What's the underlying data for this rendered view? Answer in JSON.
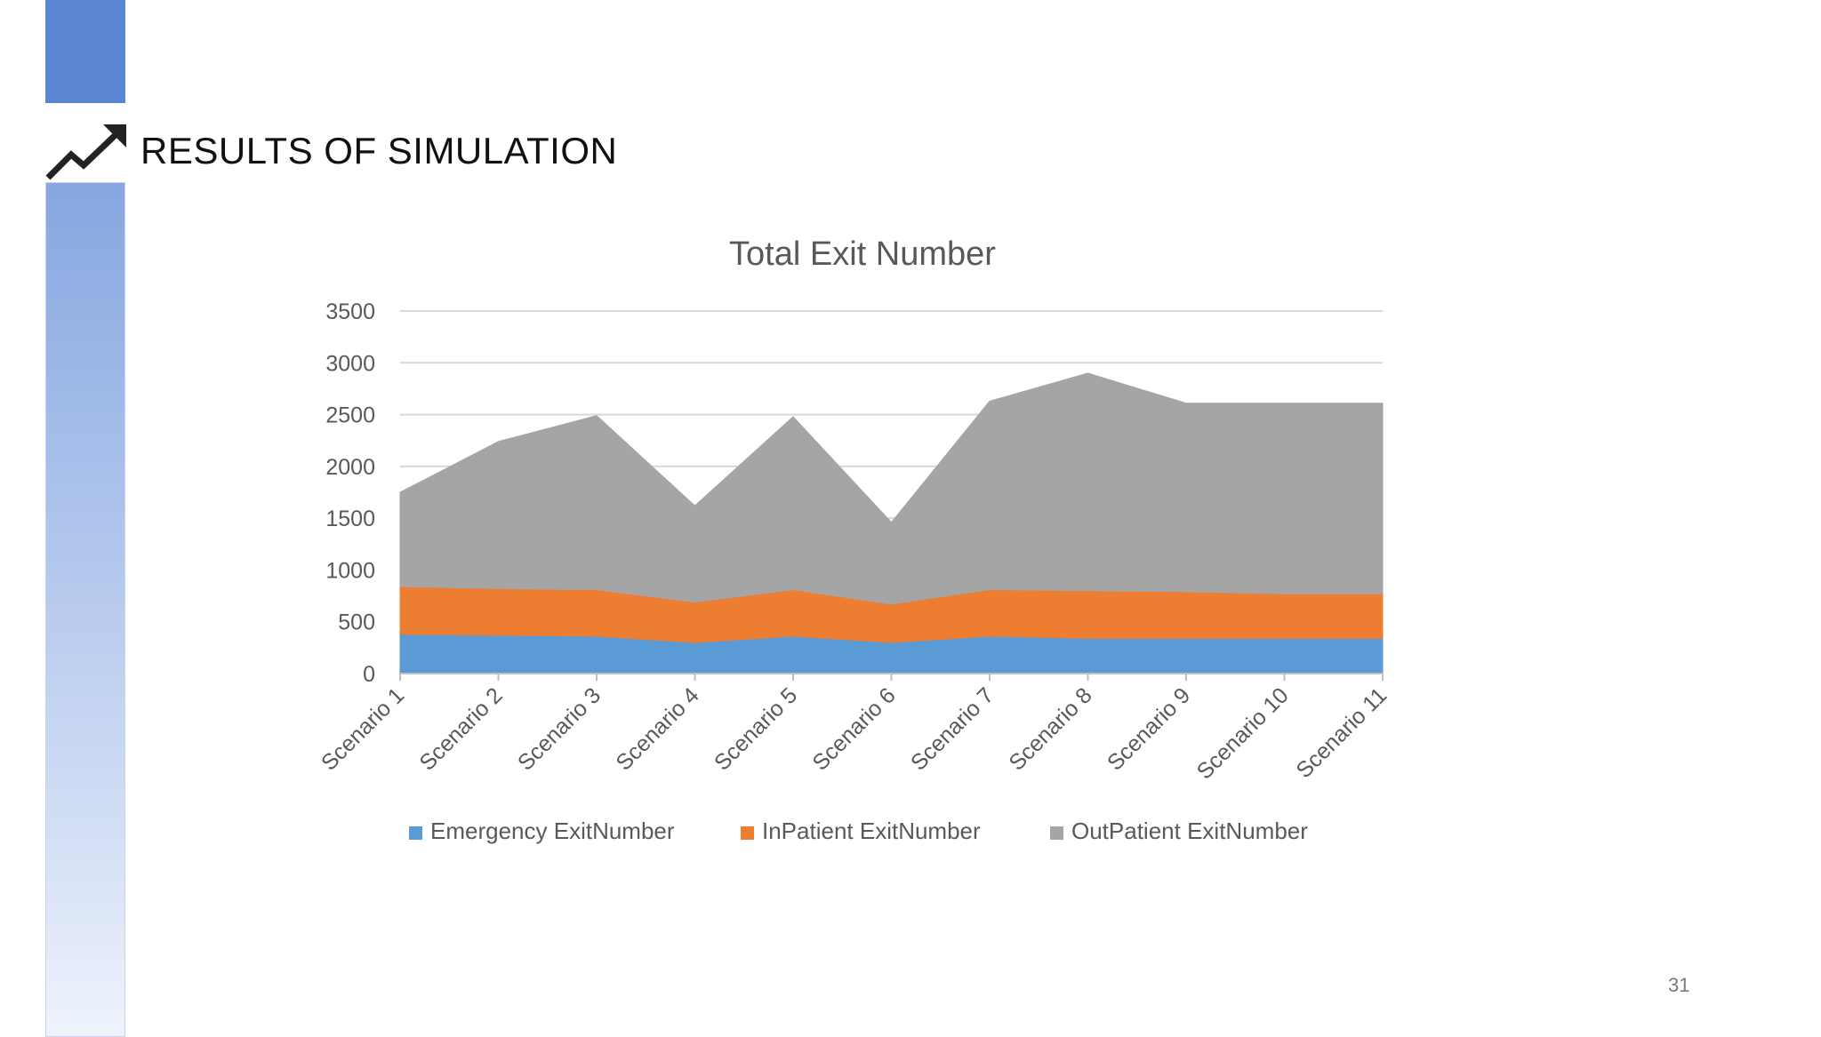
{
  "slide": {
    "title": "RESULTS OF SIMULATION",
    "page_number": "31",
    "icon": "trend-up-arrow-icon",
    "accent_color": "#5b86d3"
  },
  "chart_data": {
    "type": "area",
    "stacked": true,
    "title": "Total Exit Number",
    "xlabel": "",
    "ylabel": "",
    "ylim": [
      0,
      3500
    ],
    "yticks": [
      0,
      500,
      1000,
      1500,
      2000,
      2500,
      3000,
      3500
    ],
    "ytick_labels": [
      "0",
      "500",
      "1000",
      "1500",
      "2000",
      "2500",
      "3000",
      "3500"
    ],
    "grid": true,
    "legend_position": "bottom",
    "categories": [
      "Scenario 1",
      "Scenario 2",
      "Scenario 3",
      "Scenario 4",
      "Scenario 5",
      "Scenario 6",
      "Scenario 7",
      "Scenario 8",
      "Scenario 9",
      "Scenario 10",
      "Scenario 11"
    ],
    "series": [
      {
        "name": "Emergency ExitNumber",
        "color": "#5b9bd5",
        "values": [
          380,
          370,
          360,
          300,
          360,
          300,
          360,
          340,
          340,
          340,
          340
        ]
      },
      {
        "name": "InPatient ExitNumber",
        "color": "#ed7d31",
        "values": [
          460,
          450,
          450,
          390,
          450,
          370,
          450,
          460,
          450,
          430,
          430
        ]
      },
      {
        "name": "OutPatient ExitNumber",
        "color": "#a5a5a5",
        "values": [
          910,
          1420,
          1680,
          930,
          1670,
          790,
          1820,
          2100,
          1820,
          1840,
          1840
        ]
      }
    ]
  }
}
